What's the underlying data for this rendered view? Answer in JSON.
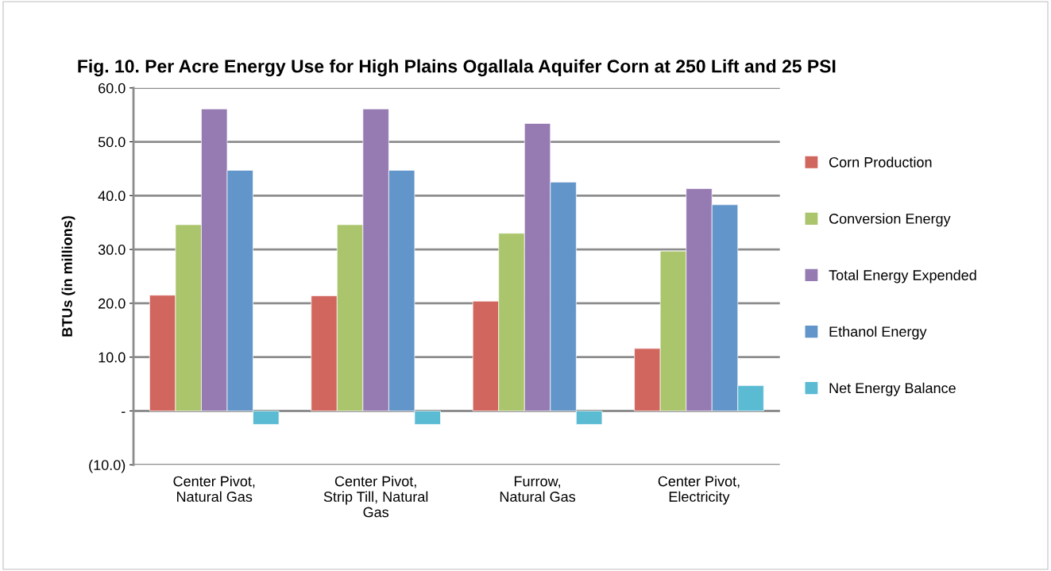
{
  "chart_data": {
    "type": "bar",
    "title": "Fig. 10. Per Acre Energy Use for High Plains Ogallala Aquifer Corn at 250 Lift and 25 PSI",
    "ylabel": "BTUs (in millions)",
    "categories": [
      "Center Pivot,\nNatural Gas",
      "Center Pivot,\nStrip Till, Natural\nGas",
      "Furrow,\nNatural Gas",
      "Center Pivot,\nElectricity"
    ],
    "series": [
      {
        "name": "Corn Production",
        "color": "#d1665e",
        "values": [
          21.5,
          21.4,
          20.4,
          11.6
        ]
      },
      {
        "name": "Conversion Energy",
        "color": "#aac56c",
        "values": [
          34.6,
          34.6,
          33.0,
          29.7
        ]
      },
      {
        "name": "Total Energy Expended",
        "color": "#967bb2",
        "values": [
          56.1,
          56.1,
          53.4,
          41.3
        ]
      },
      {
        "name": "Ethanol Energy",
        "color": "#6295c9",
        "values": [
          44.7,
          44.7,
          42.5,
          38.3
        ]
      },
      {
        "name": "Net Energy Balance",
        "color": "#5abbd3",
        "values": [
          -2.5,
          -2.5,
          -2.5,
          4.7
        ]
      }
    ],
    "ylim": [
      -10,
      60
    ],
    "yticks": [
      {
        "value": -10,
        "label": "(10.0)"
      },
      {
        "value": 0,
        "label": "-"
      },
      {
        "value": 10,
        "label": "10.0"
      },
      {
        "value": 20,
        "label": "20.0"
      },
      {
        "value": 30,
        "label": "30.0"
      },
      {
        "value": 40,
        "label": "40.0"
      },
      {
        "value": 50,
        "label": "50.0"
      },
      {
        "value": 60,
        "label": "60.0"
      }
    ],
    "grid": "y",
    "legend": "right"
  }
}
